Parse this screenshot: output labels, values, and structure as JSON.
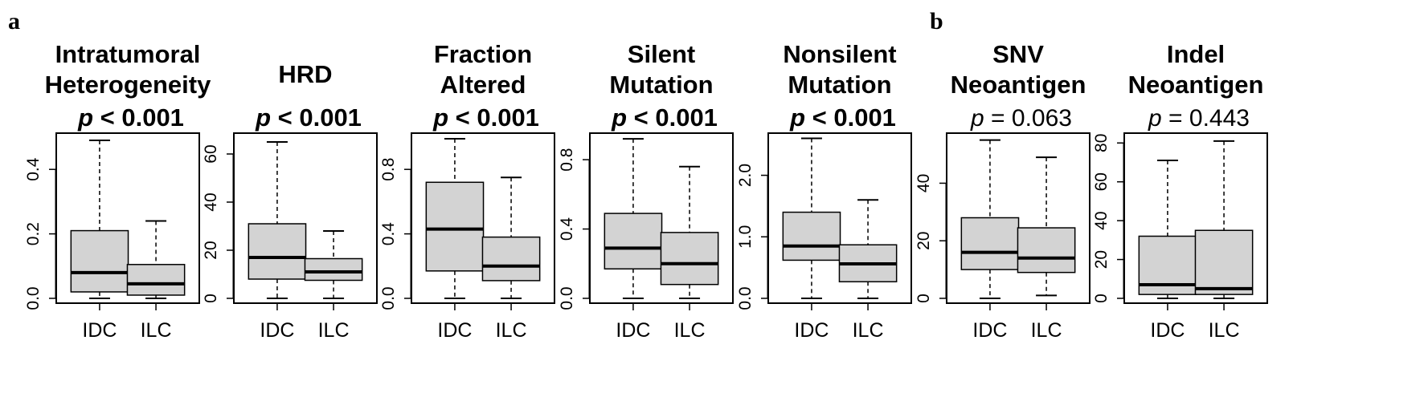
{
  "panel_letters": {
    "a": "a",
    "b": "b"
  },
  "colors": {
    "box_fill": "#d3d3d3",
    "stroke": "#000000",
    "background": "#ffffff"
  },
  "chart_data": [
    {
      "type": "boxplot",
      "panel": "a",
      "title_lines": [
        "Intratumoral",
        "Heterogeneity"
      ],
      "p_label": "p",
      "p_value": "< 0.001",
      "p_bold": true,
      "categories": [
        "IDC",
        "ILC"
      ],
      "ylim": [
        0,
        0.5
      ],
      "yticks": [
        0.0,
        0.2,
        0.4
      ],
      "ytick_labels": [
        "0.0",
        "0.2",
        "0.4"
      ],
      "boxes": [
        {
          "category": "IDC",
          "min": 0.0,
          "q1": 0.02,
          "median": 0.08,
          "q3": 0.21,
          "max": 0.49
        },
        {
          "category": "ILC",
          "min": 0.0,
          "q1": 0.01,
          "median": 0.045,
          "q3": 0.105,
          "max": 0.24
        }
      ]
    },
    {
      "type": "boxplot",
      "panel": "a",
      "title_lines": [
        "HRD"
      ],
      "p_label": "p",
      "p_value": "< 0.001",
      "p_bold": true,
      "categories": [
        "IDC",
        "ILC"
      ],
      "ylim": [
        0,
        67
      ],
      "yticks": [
        0,
        20,
        40,
        60
      ],
      "ytick_labels": [
        "0",
        "20",
        "40",
        "60"
      ],
      "boxes": [
        {
          "category": "IDC",
          "min": 0,
          "q1": 8,
          "median": 17,
          "q3": 31,
          "max": 65
        },
        {
          "category": "ILC",
          "min": 0,
          "q1": 7.5,
          "median": 11,
          "q3": 16.5,
          "max": 28
        }
      ]
    },
    {
      "type": "boxplot",
      "panel": "a",
      "title_lines": [
        "Fraction",
        "Altered"
      ],
      "p_label": "p",
      "p_value": "< 0.001",
      "p_bold": true,
      "categories": [
        "IDC",
        "ILC"
      ],
      "ylim": [
        0,
        1.0
      ],
      "yticks": [
        0.0,
        0.4,
        0.8
      ],
      "ytick_labels": [
        "0.0",
        "0.4",
        "0.8"
      ],
      "boxes": [
        {
          "category": "IDC",
          "min": 0.0,
          "q1": 0.17,
          "median": 0.43,
          "q3": 0.72,
          "max": 0.99
        },
        {
          "category": "ILC",
          "min": 0.0,
          "q1": 0.11,
          "median": 0.2,
          "q3": 0.38,
          "max": 0.75
        }
      ]
    },
    {
      "type": "boxplot",
      "panel": "a",
      "title_lines": [
        "Silent",
        "Mutation"
      ],
      "p_label": "p",
      "p_value": "< 0.001",
      "p_bold": true,
      "categories": [
        "IDC",
        "ILC"
      ],
      "ylim": [
        0,
        0.93
      ],
      "yticks": [
        0.0,
        0.4,
        0.8
      ],
      "ytick_labels": [
        "0.0",
        "0.4",
        "0.8"
      ],
      "boxes": [
        {
          "category": "IDC",
          "min": 0.0,
          "q1": 0.17,
          "median": 0.29,
          "q3": 0.49,
          "max": 0.92
        },
        {
          "category": "ILC",
          "min": 0.0,
          "q1": 0.08,
          "median": 0.2,
          "q3": 0.38,
          "max": 0.76
        }
      ]
    },
    {
      "type": "boxplot",
      "panel": "a",
      "title_lines": [
        "Nonsilent",
        "Mutation"
      ],
      "p_label": "p",
      "p_value": "< 0.001",
      "p_bold": true,
      "categories": [
        "IDC",
        "ILC"
      ],
      "ylim": [
        0,
        2.62
      ],
      "yticks": [
        0.0,
        1.0,
        2.0
      ],
      "ytick_labels": [
        "0.0",
        "1.0",
        "2.0"
      ],
      "boxes": [
        {
          "category": "IDC",
          "min": 0.0,
          "q1": 0.62,
          "median": 0.85,
          "q3": 1.4,
          "max": 2.6
        },
        {
          "category": "ILC",
          "min": 0.0,
          "q1": 0.27,
          "median": 0.56,
          "q3": 0.87,
          "max": 1.6
        }
      ]
    },
    {
      "type": "boxplot",
      "panel": "b",
      "title_lines": [
        "SNV",
        "Neoantigen"
      ],
      "p_label": "p",
      "p_value": "= 0.063",
      "p_bold": false,
      "categories": [
        "IDC",
        "ILC"
      ],
      "ylim": [
        0,
        56
      ],
      "yticks": [
        0,
        20,
        40
      ],
      "ytick_labels": [
        "0",
        "20",
        "40"
      ],
      "boxes": [
        {
          "category": "IDC",
          "min": 0,
          "q1": 10,
          "median": 16,
          "q3": 28,
          "max": 55
        },
        {
          "category": "ILC",
          "min": 1,
          "q1": 9,
          "median": 14,
          "q3": 24.5,
          "max": 49
        }
      ]
    },
    {
      "type": "boxplot",
      "panel": "b",
      "title_lines": [
        "Indel",
        "Neoantigen"
      ],
      "p_label": "p",
      "p_value": "= 0.443",
      "p_bold": false,
      "categories": [
        "IDC",
        "ILC"
      ],
      "ylim": [
        0,
        83
      ],
      "yticks": [
        0,
        20,
        40,
        60,
        80
      ],
      "ytick_labels": [
        "0",
        "20",
        "40",
        "60",
        "80"
      ],
      "boxes": [
        {
          "category": "IDC",
          "min": 0,
          "q1": 2,
          "median": 7,
          "q3": 32,
          "max": 71
        },
        {
          "category": "ILC",
          "min": 0,
          "q1": 2,
          "median": 5,
          "q3": 35,
          "max": 81
        }
      ]
    }
  ]
}
